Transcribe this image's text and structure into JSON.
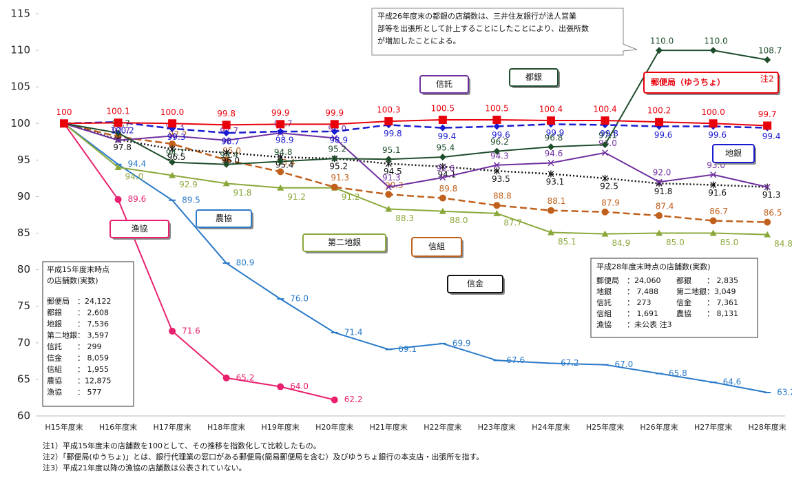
{
  "chart_data": {
    "type": "line",
    "categories": [
      "H15年度末",
      "H16年度末",
      "H17年度末",
      "H18年度末",
      "H19年度末",
      "H20年度末",
      "H21年度末",
      "H22年度末",
      "H23年度末",
      "H24年度末",
      "H25年度末",
      "H26年度末",
      "H27年度末",
      "H28年度末"
    ],
    "ylim": [
      60,
      115
    ],
    "yticks": [
      60,
      65,
      70,
      75,
      80,
      85,
      90,
      95,
      100,
      105,
      110,
      115
    ],
    "series": [
      {
        "name": "郵便局（ゆうちょ）",
        "note": "注2",
        "color": "#e8000b",
        "dash": "solid",
        "marker": "square",
        "values": [
          100,
          100.1,
          100.0,
          99.8,
          99.9,
          99.9,
          100.3,
          100.5,
          100.5,
          100.4,
          100.4,
          100.2,
          100.0,
          99.7
        ],
        "value_labels": [
          "100",
          "100.1",
          "100.0",
          "99.8",
          "99.9",
          "99.9",
          "100.3",
          "100.5",
          "100.5",
          "100.4",
          "100.4",
          "100.2",
          "100.0",
          "99.7"
        ]
      },
      {
        "name": "地銀",
        "color": "#1a1ad0",
        "dash": "dashed",
        "marker": "diamond",
        "values": [
          100,
          100.2,
          99.3,
          98.7,
          98.9,
          98.9,
          99.8,
          99.4,
          99.6,
          99.9,
          99.8,
          99.6,
          99.6,
          99.4
        ],
        "value_labels": [
          null,
          "100.2",
          "99.3",
          "98.7",
          "98.9",
          "98.9",
          "99.8",
          "99.4",
          "99.6",
          "99.9",
          "99.8",
          "99.6",
          "99.6",
          "99.4"
        ]
      },
      {
        "name": "都銀",
        "color": "#1e4d2b",
        "dash": "solid",
        "marker": "diamond",
        "values": [
          100,
          98.7,
          94.7,
          94.4,
          94.8,
          95.2,
          95.1,
          95.4,
          96.2,
          96.8,
          97.1,
          110.0,
          110.0,
          108.7
        ],
        "value_labels": [
          null,
          "98.7",
          "94.7",
          "94.4",
          "94.8",
          "95.2",
          "95.1",
          "95.4",
          "96.2",
          "96.8",
          "97.1",
          "110.0",
          "110.0",
          "108.7"
        ]
      },
      {
        "name": "信託",
        "color": "#7030a0",
        "dash": "solid",
        "marker": "x",
        "values": [
          100,
          97.7,
          98.3,
          97.7,
          98.7,
          98.0,
          91.3,
          92.6,
          94.3,
          94.6,
          96.0,
          92.0,
          93.0,
          91.3
        ],
        "value_labels": [
          null,
          "97.7",
          "98.3",
          "97.7",
          "98.7",
          "98.0",
          "91.3",
          "92.6",
          "94.3",
          "94.6",
          "96.0",
          "92.0",
          "93.0",
          null
        ]
      },
      {
        "name": "信金",
        "color": "#111111",
        "dash": "dotted",
        "marker": "asterisk",
        "values": [
          100,
          97.8,
          96.5,
          96.0,
          95.4,
          95.2,
          94.5,
          94.1,
          93.5,
          93.1,
          92.5,
          91.8,
          91.6,
          91.3
        ],
        "value_labels": [
          null,
          "97.8",
          "96.5",
          "96.0",
          "95.4",
          "95.2",
          "94.5",
          "94.1",
          "93.5",
          "93.1",
          "92.5",
          "91.8",
          "91.6",
          "91.3"
        ]
      },
      {
        "name": "信組",
        "color": "#c0601c",
        "dash": "dashed",
        "marker": "circle",
        "values": [
          100,
          98.2,
          97.2,
          95.0,
          93.4,
          91.3,
          90.3,
          89.8,
          88.8,
          88.1,
          87.9,
          87.4,
          86.7,
          86.5
        ],
        "value_labels": [
          null,
          null,
          "97.2",
          "95.0",
          "93.4",
          "91.3",
          "90.3",
          "89.8",
          "88.8",
          "88.1",
          "87.9",
          "87.4",
          "86.7",
          "86.5"
        ]
      },
      {
        "name": "第二地銀",
        "color": "#8aa83a",
        "dash": "solid",
        "marker": "triangle",
        "values": [
          100,
          94.0,
          92.9,
          91.8,
          91.2,
          91.2,
          88.3,
          88.0,
          87.7,
          85.1,
          84.9,
          85.0,
          85.0,
          84.8
        ],
        "value_labels": [
          null,
          "94.0",
          "92.9",
          "91.8",
          "91.2",
          "91.2",
          "88.3",
          "88.0",
          "87.7",
          "85.1",
          "84.9",
          "85.0",
          "85.0",
          "84.8"
        ]
      },
      {
        "name": "農協",
        "color": "#2a7ac8",
        "dash": "solid",
        "marker": "dash",
        "values": [
          100,
          94.4,
          89.5,
          80.9,
          76.0,
          71.4,
          69.1,
          69.9,
          67.6,
          67.2,
          67.0,
          65.8,
          64.6,
          63.2
        ],
        "value_labels": [
          null,
          "94.4",
          "89.5",
          "80.9",
          "76.0",
          "71.4",
          "69.1",
          "69.9",
          "67.6",
          "67.2",
          "67.0",
          "65.8",
          "64.6",
          "63.2"
        ]
      },
      {
        "name": "漁協",
        "color": "#e8206e",
        "dash": "solid",
        "marker": "circle",
        "values": [
          100,
          89.6,
          71.6,
          65.2,
          64.0,
          62.2,
          null,
          null,
          null,
          null,
          null,
          null,
          null,
          null
        ],
        "value_labels": [
          null,
          "89.6",
          "71.6",
          "65.2",
          "64.0",
          "62.2",
          null,
          null,
          null,
          null,
          null,
          null,
          null,
          null
        ]
      }
    ],
    "callout": [
      "平成26年度末の都銀の店舗数は、三井住友銀行が法人営業",
      "部等を出張所として計上することにしたことにより、出張所数",
      "が増加したことによる。"
    ],
    "box_h15": {
      "title": [
        "平成15年度末時点",
        "の店舗数(実数)"
      ],
      "rows": [
        "郵便局　：24,122",
        "都銀　　：  2,608",
        "地銀　　：  7,536",
        "第二地銀：  3,597",
        "信託　　：     299",
        "信金　　：  8,059",
        "信組　　：  1,955",
        "農協　　：12,875",
        "漁協　　：     577"
      ]
    },
    "box_h28": {
      "title": "平成28年度末時点の店舗数(実数)",
      "rows": [
        [
          "郵便局　：24,060",
          "都銀　　：  2,835"
        ],
        [
          "地銀　　：  7,488",
          "第二地銀：3,049"
        ],
        [
          "信託　　：     273",
          "信金　　：  7,361"
        ],
        [
          "信組　　：  1,691",
          "農協　　：  8,131"
        ],
        [
          "漁協　　：未公表 注3",
          ""
        ]
      ]
    },
    "footnotes": [
      "注1）平成15年度末の店舗数を100として、その推移を指数化して比較したもの。",
      "注2）「郵便局(ゆうちょ)」とは、銀行代理業の窓口がある郵便局(簡易郵便局を含む）及びゆうちょ銀行の本支店・出張所を指す。",
      "注3）平成21年度以降の漁協の店舗数は公表されていない。"
    ]
  }
}
